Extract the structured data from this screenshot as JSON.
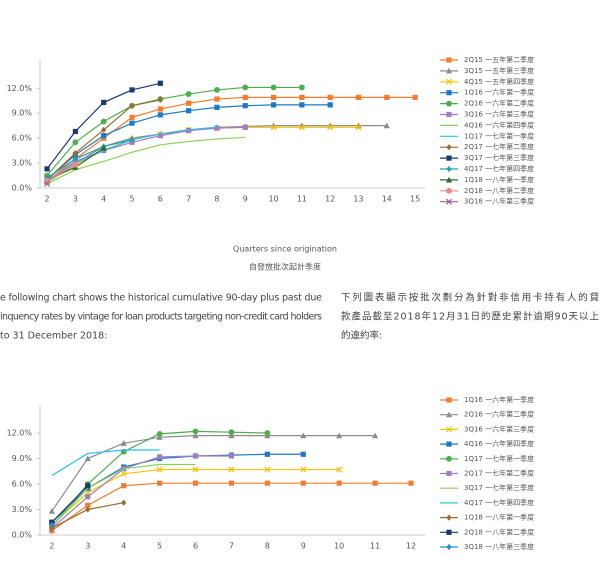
{
  "chart_data": [
    {
      "type": "line",
      "xlabel": "Quarters since origination",
      "xlabel_zh": "自發放批次起計季度",
      "x": [
        2,
        3,
        4,
        5,
        6,
        7,
        8,
        9,
        10,
        11,
        12,
        13,
        14,
        15
      ],
      "xlim": [
        1.75,
        15.35
      ],
      "ylim": [
        0,
        15.4
      ],
      "yticks": [
        {
          "value": 0,
          "label": "0.0%"
        },
        {
          "value": 3,
          "label": "3.0%"
        },
        {
          "value": 6,
          "label": "6.0%"
        },
        {
          "value": 9,
          "label": "9.0%"
        },
        {
          "value": 12,
          "label": "12.0%"
        }
      ],
      "series": [
        {
          "name": "2Q15 一五年第二季度",
          "color": "#f47c30",
          "marker": "square",
          "values": [
            0.8,
            3.5,
            6.0,
            8.5,
            9.5,
            10.2,
            10.7,
            10.9,
            10.9,
            10.9,
            10.9,
            10.9,
            10.9,
            10.9
          ]
        },
        {
          "name": "3Q15 一五年第三季度",
          "color": "#8c8c8c",
          "marker": "triangle",
          "values": [
            0.8,
            3.0,
            5.0,
            6.0,
            6.5,
            7.0,
            7.3,
            7.4,
            7.5,
            7.5,
            7.5,
            7.5,
            7.5,
            null
          ]
        },
        {
          "name": "4Q15 一五年第四季度",
          "color": "#f5c400",
          "marker": "x",
          "values": [
            0.7,
            2.8,
            4.6,
            5.8,
            6.5,
            7.0,
            7.2,
            7.3,
            7.3,
            7.3,
            7.3,
            7.3,
            null,
            null
          ]
        },
        {
          "name": "1Q16 一六年第一季度",
          "color": "#1f77c9",
          "marker": "square",
          "values": [
            1.0,
            4.0,
            6.3,
            7.8,
            8.8,
            9.3,
            9.7,
            9.9,
            10.0,
            10.0,
            10.0,
            null,
            null,
            null
          ]
        },
        {
          "name": "2Q16 一六年第二季度",
          "color": "#4cae4c",
          "marker": "circle",
          "values": [
            1.5,
            5.5,
            8.0,
            9.9,
            10.7,
            11.3,
            11.8,
            12.1,
            12.1,
            12.1,
            null,
            null,
            null,
            null
          ]
        },
        {
          "name": "3Q16 一六年第三季度",
          "color": "#a47cc0",
          "marker": "square",
          "values": [
            0.8,
            3.2,
            4.5,
            5.5,
            6.3,
            6.9,
            7.2,
            7.3,
            null,
            null,
            null,
            null,
            null,
            null
          ]
        },
        {
          "name": "4Q16 一六年第四季度",
          "color": "#8ccf5a",
          "marker": "none",
          "values": [
            0.5,
            2.2,
            3.2,
            4.3,
            5.2,
            5.6,
            5.9,
            6.1,
            null,
            null,
            null,
            null,
            null,
            null
          ]
        },
        {
          "name": "1Q17 一七年第一季度",
          "color": "#2bc1e8",
          "marker": "none",
          "values": [
            0.7,
            3.0,
            4.5,
            5.8,
            6.5,
            7.0,
            7.3,
            null,
            null,
            null,
            null,
            null,
            null,
            null
          ]
        },
        {
          "name": "2Q17 一七年第二季度",
          "color": "#9b6a2f",
          "marker": "diamond",
          "values": [
            1.0,
            4.2,
            7.0,
            9.9,
            10.6,
            null,
            null,
            null,
            null,
            null,
            null,
            null,
            null,
            null
          ]
        },
        {
          "name": "3Q17 一七年第三季度",
          "color": "#1a3a73",
          "marker": "square",
          "values": [
            2.3,
            6.8,
            10.3,
            11.8,
            12.6,
            null,
            null,
            null,
            null,
            null,
            null,
            null,
            null,
            null
          ]
        },
        {
          "name": "4Q17 一七年第四季度",
          "color": "#1fa3b0",
          "marker": "diamond",
          "values": [
            1.2,
            3.5,
            5.0,
            5.8,
            null,
            null,
            null,
            null,
            null,
            null,
            null,
            null,
            null,
            null
          ]
        },
        {
          "name": "1Q18 一八年第一季度",
          "color": "#2e6b2e",
          "marker": "triangle",
          "values": [
            1.0,
            2.5,
            4.8,
            null,
            null,
            null,
            null,
            null,
            null,
            null,
            null,
            null,
            null,
            null
          ]
        },
        {
          "name": "2Q18 一八年第二季度",
          "color": "#f08a8a",
          "marker": "circle",
          "values": [
            0.9,
            2.8,
            null,
            null,
            null,
            null,
            null,
            null,
            null,
            null,
            null,
            null,
            null,
            null
          ]
        },
        {
          "name": "3Q18 一八年第三季度",
          "color": "#9a5aa8",
          "marker": "x",
          "values": [
            0.5,
            null,
            null,
            null,
            null,
            null,
            null,
            null,
            null,
            null,
            null,
            null,
            null,
            null
          ]
        }
      ]
    },
    {
      "type": "line",
      "x": [
        2,
        3,
        4,
        5,
        6,
        7,
        8,
        9,
        10,
        11,
        12
      ],
      "xlim": [
        1.67,
        12.39
      ],
      "ylim": [
        0,
        15.3
      ],
      "yticks": [
        {
          "value": 0,
          "label": "0.0%"
        },
        {
          "value": 3,
          "label": "3.0%"
        },
        {
          "value": 6,
          "label": "6.0%"
        },
        {
          "value": 9,
          "label": "9.0%"
        },
        {
          "value": 12,
          "label": "12.0%"
        }
      ],
      "series": [
        {
          "name": "1Q16 一六年第一季度",
          "color": "#f47c30",
          "marker": "square",
          "values": [
            0.5,
            3.5,
            5.8,
            6.1,
            6.1,
            6.1,
            6.1,
            6.1,
            6.1,
            6.1,
            6.1
          ]
        },
        {
          "name": "2Q16 一六年第二季度",
          "color": "#8c8c8c",
          "marker": "triangle",
          "values": [
            2.8,
            9.0,
            10.8,
            11.5,
            11.7,
            11.7,
            11.7,
            11.7,
            11.7,
            11.7,
            null
          ]
        },
        {
          "name": "3Q16 一六年第三季度",
          "color": "#f5c400",
          "marker": "x",
          "values": [
            1.2,
            5.0,
            7.2,
            7.7,
            7.7,
            7.7,
            7.7,
            7.7,
            7.7,
            null,
            null
          ]
        },
        {
          "name": "4Q16 一六年第四季度",
          "color": "#1f77c9",
          "marker": "square",
          "values": [
            1.5,
            5.5,
            8.0,
            9.0,
            9.3,
            9.4,
            9.5,
            9.5,
            null,
            null,
            null
          ]
        },
        {
          "name": "1Q17 一七年第一季度",
          "color": "#4cae4c",
          "marker": "circle",
          "values": [
            1.0,
            6.0,
            9.8,
            11.9,
            12.2,
            12.1,
            12.0,
            null,
            null,
            null,
            null
          ]
        },
        {
          "name": "2Q17 一七年第二季度",
          "color": "#a47cc0",
          "marker": "square",
          "values": [
            0.8,
            4.5,
            7.8,
            9.2,
            9.3,
            9.3,
            null,
            null,
            null,
            null,
            null
          ]
        },
        {
          "name": "3Q17 一七年第三季度",
          "color": "#8ccf5a",
          "marker": "none",
          "values": [
            1.0,
            5.5,
            7.8,
            8.3,
            8.3,
            null,
            null,
            null,
            null,
            null,
            null
          ]
        },
        {
          "name": "4Q17 一七年第四季度",
          "color": "#2bc1e8",
          "marker": "none",
          "values": [
            7.0,
            9.6,
            10.0,
            10.0,
            null,
            null,
            null,
            null,
            null,
            null,
            null
          ]
        },
        {
          "name": "1Q18 一八年第一季度",
          "color": "#9b6a2f",
          "marker": "diamond",
          "values": [
            0.8,
            3.0,
            3.8,
            null,
            null,
            null,
            null,
            null,
            null,
            null,
            null
          ]
        },
        {
          "name": "2Q18 一八年第二季度",
          "color": "#1a3a73",
          "marker": "square",
          "values": [
            1.5,
            5.8,
            null,
            null,
            null,
            null,
            null,
            null,
            null,
            null,
            null
          ]
        },
        {
          "name": "3Q18 一八年第三季度",
          "color": "#1f8fd0",
          "marker": "diamond",
          "values": [
            1.2,
            null,
            null,
            null,
            null,
            null,
            null,
            null,
            null,
            null,
            null
          ]
        }
      ]
    }
  ],
  "text": {
    "en": [
      "e following chart shows the historical cumulative 90-day plus past due",
      "inquency rates by vintage for loan products targeting non-credit card holders",
      "to 31 December 2018:"
    ],
    "zh": [
      "下列圖表顯示按批次劃分為針對非信用卡持有人的貸",
      "款產品截至2018年12月31日的歷史累計逾期90天以上",
      "的違約率:"
    ]
  }
}
